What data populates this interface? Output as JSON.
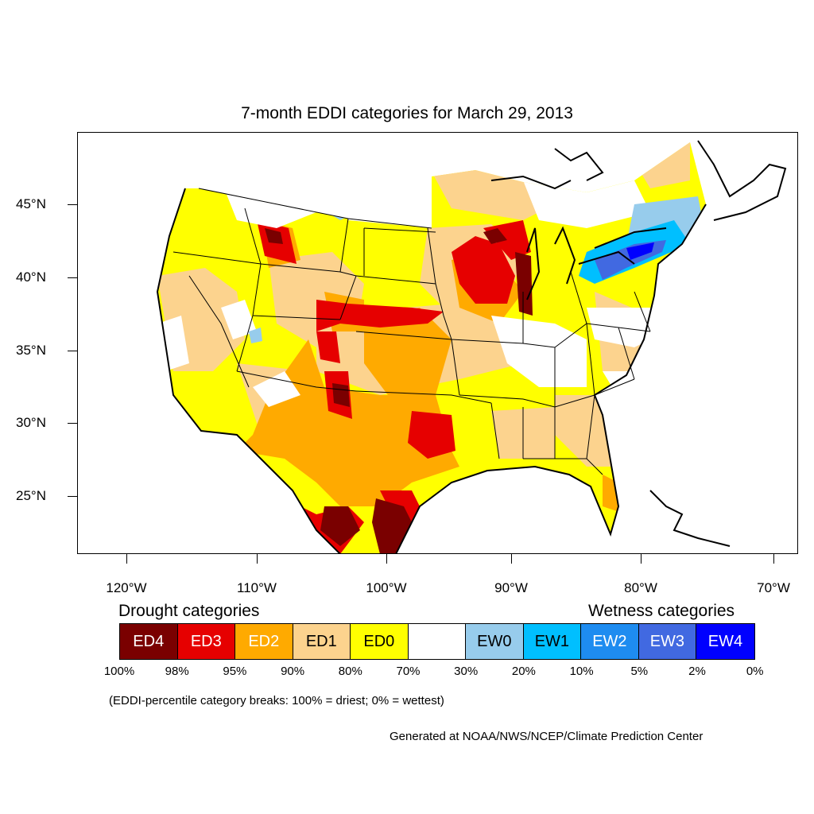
{
  "title": "7-month EDDI categories for March 29, 2013",
  "map": {
    "colors": {
      "ED4": "#7a0000",
      "ED3": "#e60000",
      "ED2": "#ffaa00",
      "ED1": "#fcd38e",
      "ED0": "#ffff00",
      "neutral": "#ffffff",
      "EW0": "#97ccec",
      "EW1": "#00bfff",
      "EW2": "#1e8cf0",
      "EW3": "#4169e1",
      "EW4": "#0000ff"
    },
    "lat_labels": [
      "45°N",
      "40°N",
      "35°N",
      "30°N",
      "25°N"
    ],
    "lon_labels": [
      "120°W",
      "110°W",
      "100°W",
      "90°W",
      "80°W",
      "70°W"
    ]
  },
  "legend": {
    "drought_heading": "Drought categories",
    "wetness_heading": "Wetness categories",
    "categories": [
      {
        "label": "ED4",
        "color": "#7a0000",
        "text_color": "#ffffff"
      },
      {
        "label": "ED3",
        "color": "#e60000",
        "text_color": "#ffffff"
      },
      {
        "label": "ED2",
        "color": "#ffaa00",
        "text_color": "#ffffff"
      },
      {
        "label": "ED1",
        "color": "#fcd38e",
        "text_color": "#000000"
      },
      {
        "label": "ED0",
        "color": "#ffff00",
        "text_color": "#000000"
      },
      {
        "label": "",
        "color": "#ffffff",
        "text_color": "#000000"
      },
      {
        "label": "EW0",
        "color": "#97ccec",
        "text_color": "#000000"
      },
      {
        "label": "EW1",
        "color": "#00bfff",
        "text_color": "#000000"
      },
      {
        "label": "EW2",
        "color": "#1e8cf0",
        "text_color": "#ffffff"
      },
      {
        "label": "EW3",
        "color": "#4169e1",
        "text_color": "#ffffff"
      },
      {
        "label": "EW4",
        "color": "#0000ff",
        "text_color": "#ffffff"
      }
    ],
    "percentiles": [
      "100%",
      "98%",
      "95%",
      "90%",
      "80%",
      "70%",
      "30%",
      "20%",
      "10%",
      "5%",
      "2%",
      "0%"
    ],
    "note": "(EDDI-percentile category breaks: 100% = driest; 0% = wettest)"
  },
  "credit": "Generated at NOAA/NWS/NCEP/Climate Prediction Center"
}
